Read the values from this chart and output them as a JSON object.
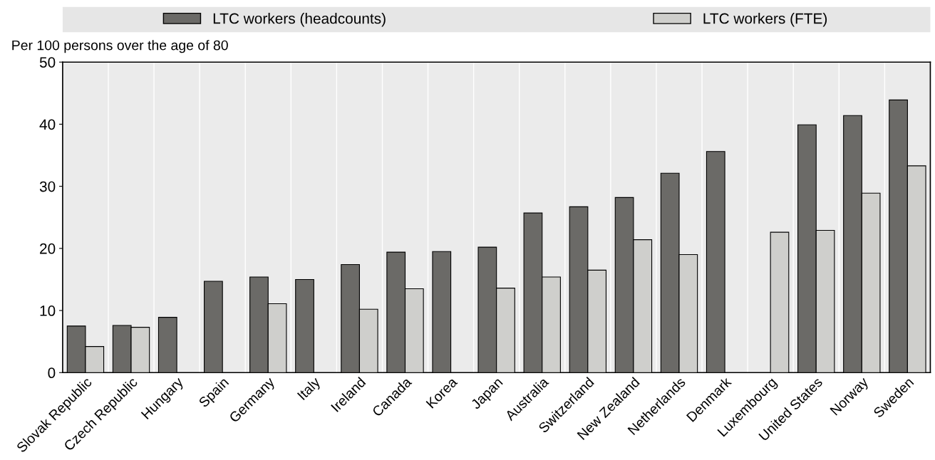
{
  "chart_data": {
    "type": "bar",
    "ylabel": "Per 100 persons over the age of 80",
    "categories": [
      "Slovak Republic",
      "Czech Republic",
      "Hungary",
      "Spain",
      "Germany",
      "Italy",
      "Ireland",
      "Canada",
      "Korea",
      "Japan",
      "Australia",
      "Switzerland",
      "New Zealand",
      "Netherlands",
      "Denmark",
      "Luxembourg",
      "United States",
      "Norway",
      "Sweden"
    ],
    "series": [
      {
        "name": "LTC workers (headcounts)",
        "color": "#6b6a67",
        "values": [
          7.5,
          7.6,
          8.9,
          14.7,
          15.4,
          15.0,
          17.4,
          19.4,
          19.5,
          20.2,
          25.7,
          26.7,
          28.2,
          32.1,
          35.6,
          null,
          39.9,
          41.4,
          43.9
        ]
      },
      {
        "name": "LTC workers (FTE)",
        "color": "#cfcfcc",
        "values": [
          4.2,
          7.3,
          null,
          null,
          11.1,
          null,
          10.2,
          13.5,
          null,
          13.6,
          15.4,
          16.5,
          21.4,
          19.0,
          null,
          22.6,
          22.9,
          28.9,
          33.3
        ]
      }
    ],
    "ylim": [
      0,
      50
    ],
    "yticks": [
      0,
      10,
      20,
      30,
      40,
      50
    ],
    "grid": "x",
    "legend": "top"
  }
}
